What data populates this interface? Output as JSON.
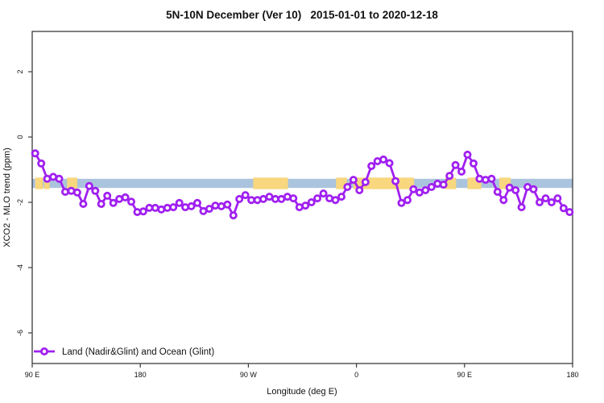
{
  "chart_data": {
    "type": "line",
    "title": "5N-10N December (Ver 10)   2015-01-01 to 2020-12-18",
    "xlabel": "Longitude (deg E)",
    "ylabel": "XCO2 - MLO trend (ppm)",
    "xlim_deg_extended": [
      90,
      540
    ],
    "ylim": [
      -6.9,
      3.2
    ],
    "grid": false,
    "x_ticks": [
      {
        "deg": 90,
        "label": "90 E"
      },
      {
        "deg": 180,
        "label": "180"
      },
      {
        "deg": 270,
        "label": "90 W"
      },
      {
        "deg": 360,
        "label": "0"
      },
      {
        "deg": 450,
        "label": "90 E"
      },
      {
        "deg": 540,
        "label": "180"
      }
    ],
    "y_ticks": [
      {
        "value": 2,
        "label": "2"
      },
      {
        "value": 0,
        "label": "0"
      },
      {
        "value": -2,
        "label": "-2"
      },
      {
        "value": -4,
        "label": "-4"
      },
      {
        "value": -6,
        "label": "-6"
      }
    ],
    "series": [
      {
        "name": "Land (Nadir&Glint) and Ocean (Glint)",
        "color": "#A020F0",
        "marker": "open-circle",
        "x_deg_extended": [
          92.5,
          97.5,
          102.5,
          107.5,
          112.5,
          117.5,
          122.5,
          127.5,
          132.5,
          137.5,
          142.5,
          147.5,
          152.5,
          157.5,
          162.5,
          167.5,
          172.5,
          177.5,
          182.5,
          187.5,
          192.5,
          197.5,
          202.5,
          207.5,
          212.5,
          217.5,
          222.5,
          227.5,
          232.5,
          237.5,
          242.5,
          247.5,
          252.5,
          257.5,
          262.5,
          267.5,
          272.5,
          277.5,
          282.5,
          287.5,
          292.5,
          297.5,
          302.5,
          307.5,
          312.5,
          317.5,
          322.5,
          327.5,
          332.5,
          337.5,
          342.5,
          347.5,
          352.5,
          357.5,
          362.5,
          367.5,
          372.5,
          377.5,
          382.5,
          387.5,
          392.5,
          397.5,
          402.5,
          407.5,
          412.5,
          417.5,
          422.5,
          427.5,
          432.5,
          437.5,
          442.5,
          447.5,
          452.5,
          457.5,
          462.5,
          467.5,
          472.5,
          477.5,
          482.5,
          487.5,
          492.5,
          497.5,
          502.5,
          507.5,
          512.5,
          517.5,
          522.5,
          527.5,
          532.5,
          537.5
        ],
        "values_ppm": [
          -0.5,
          -0.81,
          -1.28,
          -1.22,
          -1.28,
          -1.68,
          -1.65,
          -1.7,
          -2.05,
          -1.5,
          -1.65,
          -2.05,
          -1.8,
          -2.02,
          -1.9,
          -1.85,
          -1.98,
          -2.3,
          -2.28,
          -2.17,
          -2.17,
          -2.22,
          -2.17,
          -2.15,
          -2.02,
          -2.15,
          -2.12,
          -2.02,
          -2.27,
          -2.2,
          -2.1,
          -2.12,
          -2.07,
          -2.4,
          -1.9,
          -1.78,
          -1.93,
          -1.93,
          -1.9,
          -1.83,
          -1.9,
          -1.9,
          -1.83,
          -1.88,
          -2.15,
          -2.1,
          -2.0,
          -1.88,
          -1.73,
          -1.88,
          -1.93,
          -1.83,
          -1.53,
          -1.31,
          -1.63,
          -1.38,
          -0.89,
          -0.74,
          -0.69,
          -0.8,
          -1.35,
          -2.02,
          -1.93,
          -1.6,
          -1.7,
          -1.63,
          -1.53,
          -1.43,
          -1.46,
          -1.19,
          -0.86,
          -1.06,
          -0.54,
          -0.81,
          -1.28,
          -1.31,
          -1.28,
          -1.68,
          -1.93,
          -1.55,
          -1.63,
          -2.15,
          -1.53,
          -1.6,
          -2.0,
          -1.88,
          -2.0,
          -1.88,
          -2.18,
          -2.3
        ]
      }
    ],
    "map_band": {
      "description": "ocean/land strip across 5N-10N latitude zone",
      "ocean_color": "#abc4de",
      "land_color": "#f8d77e",
      "y_top_ppm": -1.28,
      "y_bottom_ppm": -1.56,
      "land_segments_deg_extended": [
        [
          92.5,
          99
        ],
        [
          100,
          104.5
        ],
        [
          119,
          127.5
        ],
        [
          274,
          303
        ],
        [
          343,
          352
        ],
        [
          357.5,
          408
        ],
        [
          434,
          443
        ],
        [
          452.5,
          464
        ],
        [
          479,
          488.5
        ]
      ]
    },
    "legend": {
      "label": "Land (Nadir&Glint) and Ocean (Glint)",
      "position": "bottom-left"
    }
  }
}
